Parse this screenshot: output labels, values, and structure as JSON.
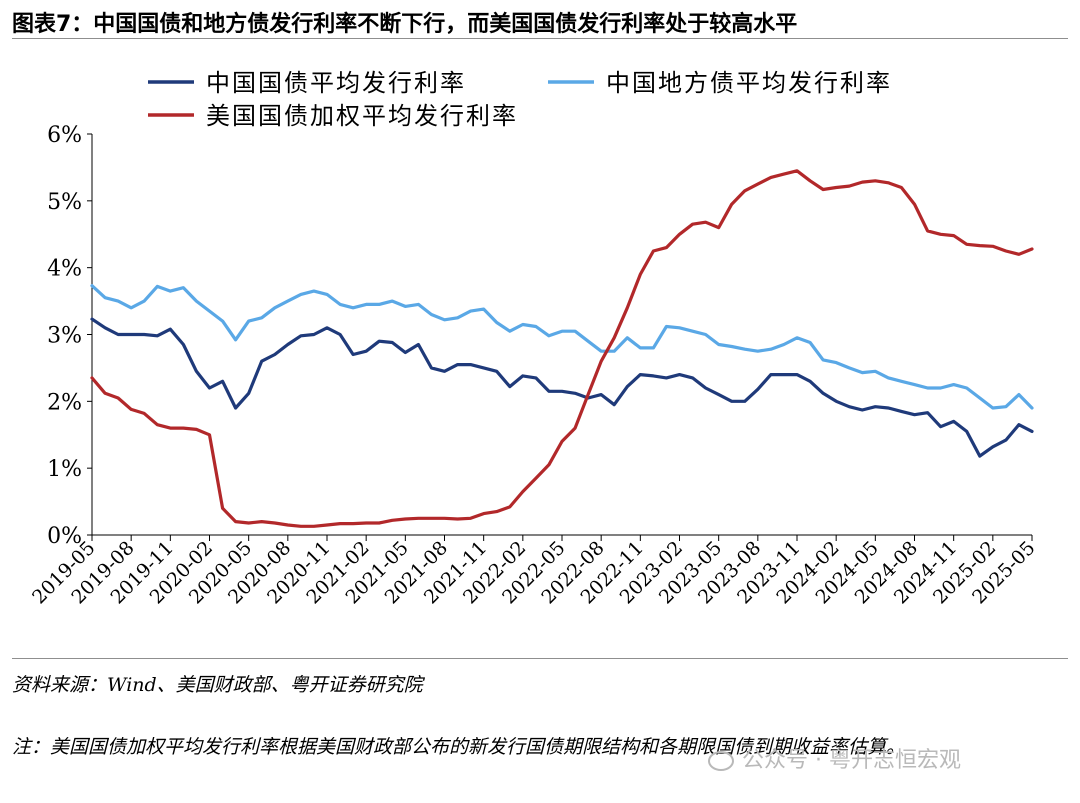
{
  "figure_title": "图表7：中国国债和地方债发行利率不断下行，而美国国债发行利率处于较高水平",
  "source": "资料来源：Wind、美国财政部、粤开证券研究院",
  "note": "注：美国国债加权平均发行利率根据美国财政部公布的新发行国债期限结构和各期限国债到期收益率估算。",
  "watermark": "公众号 · 粤开志恒宏观",
  "chart_data": {
    "type": "line",
    "title": "",
    "xlabel": "",
    "ylabel": "",
    "y_unit": "%",
    "ylim": [
      0,
      6
    ],
    "yticks": [
      0,
      1,
      2,
      3,
      4,
      5,
      6
    ],
    "ytick_labels": [
      "0%",
      "1%",
      "2%",
      "3%",
      "4%",
      "5%",
      "6%"
    ],
    "xtick_labels": [
      "2019-05",
      "2019-08",
      "2019-11",
      "2020-02",
      "2020-05",
      "2020-08",
      "2020-11",
      "2021-02",
      "2021-05",
      "2021-08",
      "2021-11",
      "2022-02",
      "2022-05",
      "2022-08",
      "2022-11",
      "2023-02",
      "2023-05",
      "2023-08",
      "2023-11",
      "2024-02",
      "2024-05",
      "2024-08",
      "2024-11",
      "2025-02",
      "2025-05"
    ],
    "x": [
      "2019-05",
      "2019-06",
      "2019-07",
      "2019-08",
      "2019-09",
      "2019-10",
      "2019-11",
      "2019-12",
      "2020-01",
      "2020-02",
      "2020-03",
      "2020-04",
      "2020-05",
      "2020-06",
      "2020-07",
      "2020-08",
      "2020-09",
      "2020-10",
      "2020-11",
      "2020-12",
      "2021-01",
      "2021-02",
      "2021-03",
      "2021-04",
      "2021-05",
      "2021-06",
      "2021-07",
      "2021-08",
      "2021-09",
      "2021-10",
      "2021-11",
      "2021-12",
      "2022-01",
      "2022-02",
      "2022-03",
      "2022-04",
      "2022-05",
      "2022-06",
      "2022-07",
      "2022-08",
      "2022-09",
      "2022-10",
      "2022-11",
      "2022-12",
      "2023-01",
      "2023-02",
      "2023-03",
      "2023-04",
      "2023-05",
      "2023-06",
      "2023-07",
      "2023-08",
      "2023-09",
      "2023-10",
      "2023-11",
      "2023-12",
      "2024-01",
      "2024-02",
      "2024-03",
      "2024-04",
      "2024-05",
      "2024-06",
      "2024-07",
      "2024-08",
      "2024-09",
      "2024-10",
      "2024-11",
      "2024-12",
      "2025-01",
      "2025-02",
      "2025-03",
      "2025-04",
      "2025-05"
    ],
    "legend": "top",
    "grid": false,
    "series": [
      {
        "name": "中国国债平均发行利率",
        "color": "#1f3a7a",
        "values": [
          3.23,
          3.1,
          3.0,
          3.0,
          3.0,
          2.98,
          3.08,
          2.85,
          2.45,
          2.2,
          2.3,
          1.9,
          2.12,
          2.6,
          2.7,
          2.85,
          2.98,
          3.0,
          3.1,
          3.0,
          2.7,
          2.75,
          2.9,
          2.88,
          2.73,
          2.85,
          2.5,
          2.45,
          2.55,
          2.55,
          2.5,
          2.45,
          2.22,
          2.38,
          2.35,
          2.15,
          2.15,
          2.12,
          2.05,
          2.1,
          1.95,
          2.22,
          2.4,
          2.38,
          2.35,
          2.4,
          2.35,
          2.2,
          2.1,
          2.0,
          2.0,
          2.18,
          2.4,
          2.4,
          2.4,
          2.3,
          2.12,
          2.0,
          1.92,
          1.87,
          1.92,
          1.9,
          1.85,
          1.8,
          1.83,
          1.62,
          1.7,
          1.55,
          1.18,
          1.32,
          1.42,
          1.65,
          1.55
        ]
      },
      {
        "name": "中国地方债平均发行利率",
        "color": "#5aa8e6",
        "values": [
          3.73,
          3.55,
          3.5,
          3.4,
          3.5,
          3.72,
          3.65,
          3.7,
          3.5,
          3.35,
          3.2,
          2.92,
          3.2,
          3.25,
          3.4,
          3.5,
          3.6,
          3.65,
          3.6,
          3.45,
          3.4,
          3.45,
          3.45,
          3.5,
          3.42,
          3.45,
          3.3,
          3.22,
          3.25,
          3.35,
          3.38,
          3.18,
          3.05,
          3.15,
          3.12,
          2.98,
          3.05,
          3.05,
          2.9,
          2.75,
          2.75,
          2.95,
          2.8,
          2.8,
          3.12,
          3.1,
          3.05,
          3.0,
          2.85,
          2.82,
          2.78,
          2.75,
          2.78,
          2.85,
          2.95,
          2.88,
          2.62,
          2.58,
          2.5,
          2.43,
          2.45,
          2.35,
          2.3,
          2.25,
          2.2,
          2.2,
          2.25,
          2.2,
          2.05,
          1.9,
          1.92,
          2.1,
          1.9
        ]
      },
      {
        "name": "美国国债加权平均发行利率",
        "color": "#b2282a",
        "values": [
          2.35,
          2.12,
          2.05,
          1.88,
          1.82,
          1.65,
          1.6,
          1.6,
          1.58,
          1.5,
          0.4,
          0.2,
          0.18,
          0.2,
          0.18,
          0.15,
          0.13,
          0.13,
          0.15,
          0.17,
          0.17,
          0.18,
          0.18,
          0.22,
          0.24,
          0.25,
          0.25,
          0.25,
          0.24,
          0.25,
          0.32,
          0.35,
          0.42,
          0.65,
          0.85,
          1.05,
          1.4,
          1.6,
          2.1,
          2.6,
          2.95,
          3.4,
          3.9,
          4.25,
          4.3,
          4.5,
          4.65,
          4.68,
          4.6,
          4.95,
          5.15,
          5.25,
          5.35,
          5.4,
          5.45,
          5.3,
          5.17,
          5.2,
          5.22,
          5.28,
          5.3,
          5.27,
          5.2,
          4.95,
          4.55,
          4.5,
          4.48,
          4.35,
          4.33,
          4.32,
          4.25,
          4.2,
          4.28
        ]
      }
    ]
  }
}
